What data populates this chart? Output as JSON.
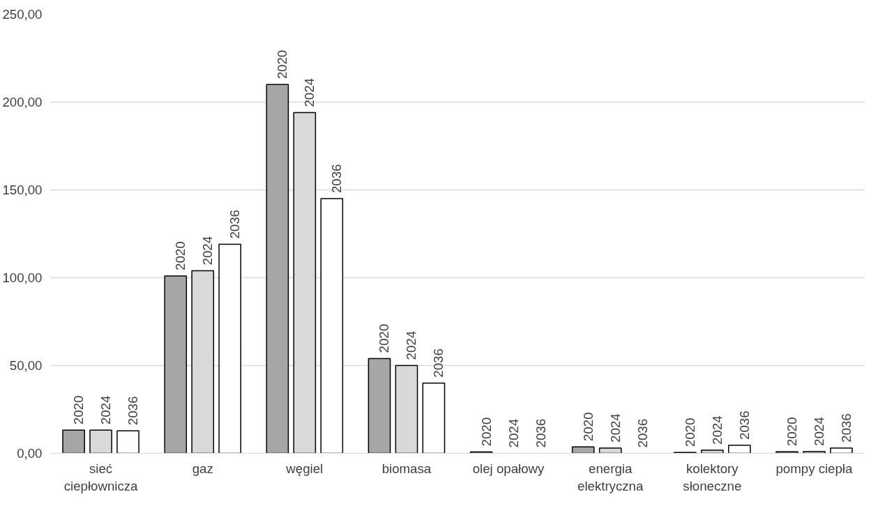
{
  "chart_data": {
    "type": "bar",
    "categories": [
      "sieć ciepłownicza",
      "gaz",
      "węgiel",
      "biomasa",
      "olej opałowy",
      "energia elektryczna",
      "kolektory słoneczne",
      "pompy ciepła"
    ],
    "series": [
      {
        "name": "2020",
        "color": "#a6a6a6",
        "values": [
          13.2,
          101,
          210,
          54,
          0.8,
          3.7,
          0.5,
          0.9
        ]
      },
      {
        "name": "2024",
        "color": "#d9d9d9",
        "values": [
          13.2,
          104,
          194,
          50,
          null,
          3.0,
          1.8,
          1.0
        ]
      },
      {
        "name": "2036",
        "color": "#ffffff",
        "values": [
          12.8,
          119,
          145,
          40,
          null,
          null,
          4.6,
          3.0
        ]
      }
    ],
    "ylim": [
      0,
      250
    ],
    "yticks": [
      {
        "value": 0,
        "label": "0,00"
      },
      {
        "value": 50,
        "label": "50,00"
      },
      {
        "value": 100,
        "label": "100,00"
      },
      {
        "value": 150,
        "label": "150,00"
      },
      {
        "value": 200,
        "label": "200,00"
      },
      {
        "value": 250,
        "label": "250,00"
      }
    ],
    "grid": "y",
    "legend": false
  }
}
